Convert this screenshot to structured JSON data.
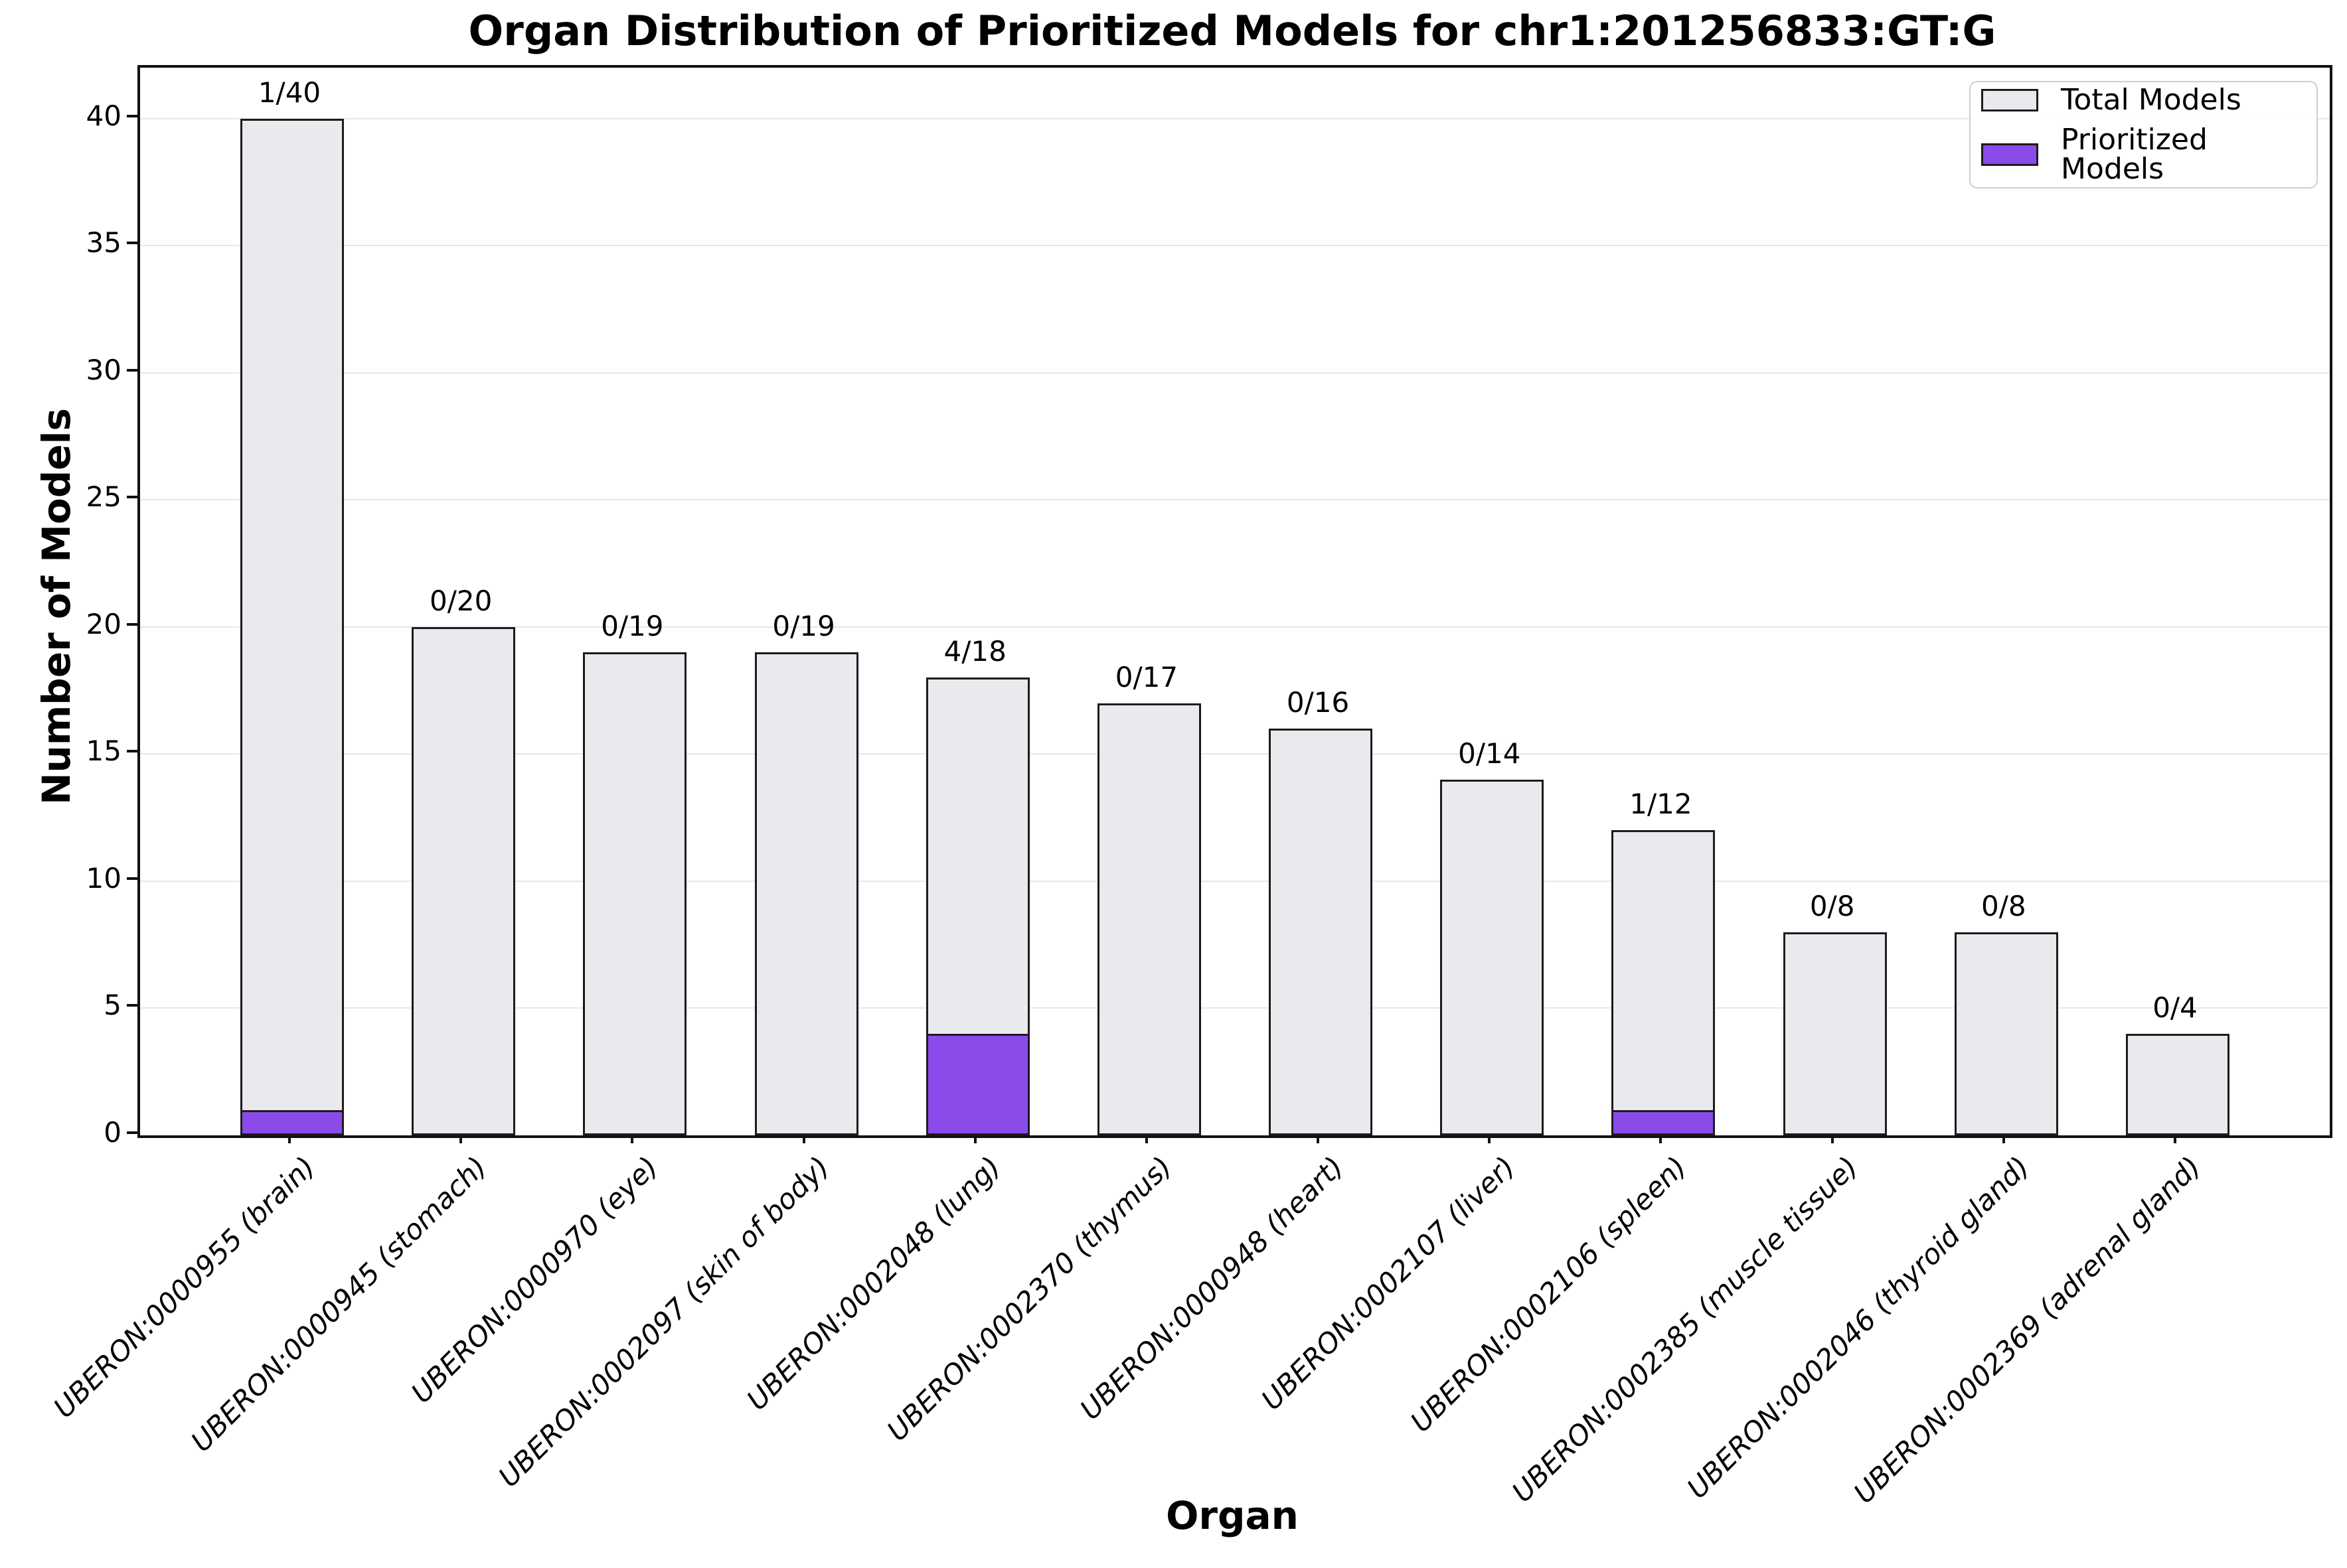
{
  "title": "Organ Distribution of Prioritized Models for chr1:201256833:GT:G",
  "colors": {
    "total_bar_fill": "#e9e9ee",
    "prioritized_bar_fill": "#8a4bea",
    "bar_edge": "#1c1c1c",
    "gridline": "#e7e7e7",
    "axis": "#111111"
  },
  "legend": {
    "items": [
      {
        "label": "Total Models",
        "color": "#e9e9ee"
      },
      {
        "label": "Prioritized Models",
        "color": "#8a4bea"
      }
    ]
  },
  "chart_data": {
    "type": "bar",
    "title": "Organ Distribution of Prioritized Models for chr1:201256833:GT:G",
    "xlabel": "Organ",
    "ylabel": "Number of Models",
    "ylim": [
      0,
      42
    ],
    "yticks": [
      0,
      5,
      10,
      15,
      20,
      25,
      30,
      35,
      40
    ],
    "grid": true,
    "legend_position": "upper right",
    "categories": [
      "UBERON:0000955 (brain)",
      "UBERON:0000945 (stomach)",
      "UBERON:0000970 (eye)",
      "UBERON:0002097 (skin of body)",
      "UBERON:0002048 (lung)",
      "UBERON:0002370 (thymus)",
      "UBERON:0000948 (heart)",
      "UBERON:0002107 (liver)",
      "UBERON:0002106 (spleen)",
      "UBERON:0002385 (muscle tissue)",
      "UBERON:0002046 (thyroid gland)",
      "UBERON:0002369 (adrenal gland)"
    ],
    "series": [
      {
        "name": "Total Models",
        "color": "#e9e9ee",
        "values": [
          40,
          20,
          19,
          19,
          18,
          17,
          16,
          14,
          12,
          8,
          8,
          4
        ]
      },
      {
        "name": "Prioritized Models",
        "color": "#8a4bea",
        "values": [
          1,
          0,
          0,
          0,
          4,
          0,
          0,
          0,
          1,
          0,
          0,
          0
        ]
      }
    ],
    "bar_labels": [
      "1/40",
      "0/20",
      "0/19",
      "0/19",
      "4/18",
      "0/17",
      "0/16",
      "0/14",
      "1/12",
      "0/8",
      "0/8",
      "0/4"
    ]
  }
}
